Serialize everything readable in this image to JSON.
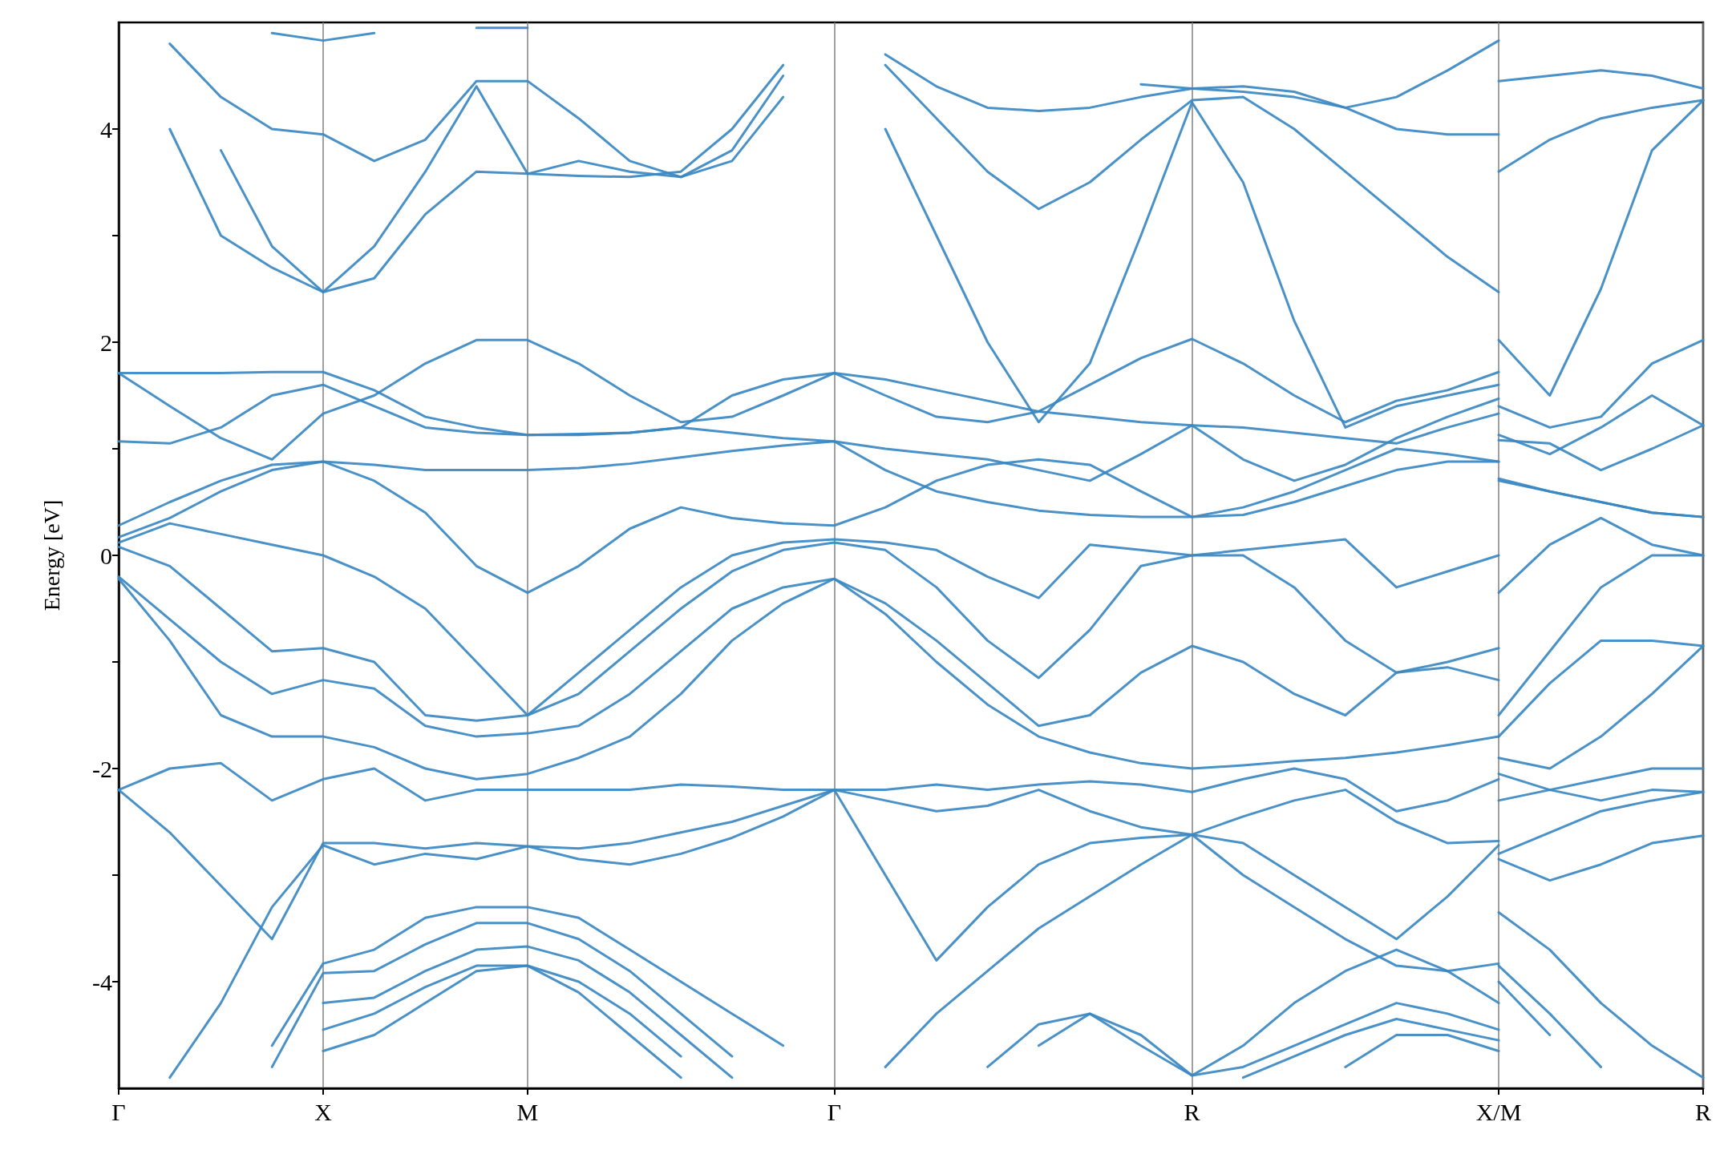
{
  "chart_data": {
    "type": "line",
    "ylabel": "Energy [eV]",
    "ylim": [
      -5,
      5
    ],
    "yticks": [
      -4,
      {
        "value": -3,
        "label": null
      },
      -2,
      {
        "value": -1,
        "label": null
      },
      0,
      {
        "value": 1,
        "label": null
      },
      2,
      {
        "value": 3,
        "label": null
      },
      4
    ],
    "categories": [
      "Γ",
      null,
      null,
      null,
      "X",
      null,
      null,
      null,
      "M",
      null,
      null,
      null,
      null,
      null,
      "Γ",
      null,
      null,
      null,
      null,
      null,
      null,
      "R",
      null,
      null,
      null,
      null,
      null,
      "X/M",
      null,
      null,
      null,
      "R"
    ],
    "grid": "x",
    "line_style": "solid",
    "series": [
      {
        "color": "#3a88c2",
        "values": [
          null,
          null,
          null,
          4.9,
          4.83,
          4.9,
          null,
          4.95,
          4.95,
          null,
          null,
          null,
          null,
          null,
          null,
          null,
          null,
          null,
          null,
          null,
          4.42,
          4.38,
          4.35,
          4.3,
          4.2,
          4.3,
          4.55,
          4.83,
          null,
          null,
          null,
          null
        ]
      },
      {
        "color": "#3a88c2",
        "values": [
          null,
          null,
          null,
          null,
          null,
          null,
          null,
          null,
          null,
          null,
          null,
          null,
          null,
          null,
          null,
          null,
          null,
          null,
          null,
          null,
          null,
          null,
          null,
          null,
          null,
          null,
          null,
          4.45,
          4.5,
          4.55,
          4.5,
          4.38
        ]
      },
      {
        "color": "#3a88c2",
        "values": [
          null,
          4.8,
          4.3,
          4.0,
          3.95,
          3.7,
          3.9,
          4.45,
          4.45,
          4.1,
          3.7,
          3.55,
          3.7,
          4.3,
          null,
          4.7,
          4.4,
          4.2,
          4.17,
          4.2,
          4.3,
          4.38,
          4.4,
          4.35,
          4.2,
          4.0,
          3.95,
          3.95,
          null,
          null,
          null,
          null
        ]
      },
      {
        "color": "#3a88c2",
        "values": [
          null,
          null,
          null,
          null,
          null,
          null,
          null,
          null,
          null,
          null,
          null,
          null,
          null,
          null,
          null,
          null,
          null,
          null,
          null,
          null,
          null,
          null,
          null,
          null,
          null,
          null,
          null,
          3.6,
          3.9,
          4.1,
          4.2,
          4.27
        ]
      },
      {
        "color": "#3a88c2",
        "values": [
          null,
          null,
          3.8,
          2.9,
          2.47,
          2.9,
          3.6,
          4.4,
          3.58,
          3.7,
          3.6,
          3.55,
          3.8,
          4.5,
          null,
          4.6,
          4.1,
          3.6,
          3.25,
          3.5,
          3.9,
          4.27,
          4.3,
          4.0,
          3.6,
          3.2,
          2.8,
          2.47,
          null,
          null,
          null,
          null
        ]
      },
      {
        "color": "#3a88c2",
        "values": [
          null,
          null,
          null,
          null,
          null,
          null,
          null,
          null,
          null,
          null,
          null,
          null,
          null,
          null,
          null,
          null,
          null,
          null,
          null,
          null,
          null,
          null,
          null,
          null,
          null,
          null,
          null,
          2.02,
          1.5,
          2.5,
          3.8,
          4.27
        ]
      },
      {
        "color": "#3a88c2",
        "values": [
          null,
          4.0,
          3.0,
          2.7,
          2.47,
          2.6,
          3.2,
          3.6,
          3.58,
          3.56,
          3.55,
          3.6,
          4.0,
          4.6,
          null,
          4.0,
          3.0,
          2.0,
          1.25,
          1.8,
          3.0,
          4.25,
          3.5,
          2.2,
          1.2,
          1.4,
          1.5,
          1.6,
          null,
          null,
          null,
          null
        ]
      },
      {
        "color": "#3a88c2",
        "values": [
          null,
          null,
          null,
          null,
          null,
          null,
          null,
          null,
          null,
          null,
          null,
          null,
          null,
          null,
          null,
          null,
          null,
          null,
          null,
          null,
          null,
          null,
          null,
          null,
          null,
          null,
          null,
          1.4,
          1.2,
          1.3,
          1.8,
          2.02
        ]
      },
      {
        "color": "#3a88c2",
        "values": [
          1.71,
          1.71,
          1.71,
          1.72,
          1.72,
          1.55,
          1.3,
          1.2,
          1.13,
          1.13,
          1.15,
          1.2,
          1.5,
          1.65,
          1.71,
          1.5,
          1.3,
          1.25,
          1.35,
          1.6,
          1.85,
          2.03,
          1.8,
          1.5,
          1.25,
          1.45,
          1.55,
          1.72,
          null,
          null,
          null,
          null
        ]
      },
      {
        "color": "#3a88c2",
        "values": [
          null,
          null,
          null,
          null,
          null,
          null,
          null,
          null,
          null,
          null,
          null,
          null,
          null,
          null,
          null,
          null,
          null,
          null,
          null,
          null,
          null,
          null,
          null,
          null,
          null,
          null,
          null,
          1.13,
          0.95,
          1.2,
          1.5,
          1.22
        ]
      },
      {
        "color": "#3a88c2",
        "values": [
          1.71,
          1.4,
          1.1,
          0.9,
          1.33,
          1.5,
          1.8,
          2.02,
          2.02,
          1.8,
          1.5,
          1.25,
          1.3,
          1.5,
          1.71,
          1.65,
          1.55,
          1.45,
          1.35,
          1.3,
          1.25,
          1.22,
          1.2,
          1.15,
          1.1,
          1.05,
          1.2,
          1.33,
          null,
          null,
          null,
          null
        ]
      },
      {
        "color": "#3a88c2",
        "values": [
          null,
          null,
          null,
          null,
          null,
          null,
          null,
          null,
          null,
          null,
          null,
          null,
          null,
          null,
          null,
          null,
          null,
          null,
          null,
          null,
          null,
          null,
          null,
          null,
          null,
          null,
          null,
          1.08,
          1.05,
          0.8,
          1.0,
          1.22
        ]
      },
      {
        "color": "#3a88c2",
        "values": [
          1.07,
          1.05,
          1.2,
          1.5,
          1.6,
          1.4,
          1.2,
          1.15,
          1.13,
          1.14,
          1.15,
          1.2,
          1.15,
          1.1,
          1.07,
          1.0,
          0.95,
          0.9,
          0.8,
          0.7,
          0.95,
          1.22,
          0.9,
          0.7,
          0.85,
          1.1,
          1.3,
          1.47,
          null,
          null,
          null,
          null
        ]
      },
      {
        "color": "#3a88c2",
        "values": [
          null,
          null,
          null,
          null,
          null,
          null,
          null,
          null,
          null,
          null,
          null,
          null,
          null,
          null,
          null,
          null,
          null,
          null,
          null,
          null,
          null,
          null,
          null,
          null,
          null,
          null,
          null,
          0.7,
          0.6,
          0.5,
          0.4,
          0.36
        ]
      },
      {
        "color": "#3a88c2",
        "values": [
          0.28,
          0.5,
          0.7,
          0.85,
          0.88,
          0.85,
          0.8,
          0.8,
          0.8,
          0.82,
          0.86,
          0.92,
          0.98,
          1.03,
          1.07,
          0.8,
          0.6,
          0.5,
          0.42,
          0.38,
          0.36,
          0.36,
          0.38,
          0.5,
          0.65,
          0.8,
          0.88,
          0.88,
          null,
          null,
          null,
          null
        ]
      },
      {
        "color": "#3a88c2",
        "values": [
          null,
          null,
          null,
          null,
          null,
          null,
          null,
          null,
          null,
          null,
          null,
          null,
          null,
          null,
          null,
          null,
          null,
          null,
          null,
          null,
          null,
          null,
          null,
          null,
          null,
          null,
          null,
          0.72,
          0.6,
          0.5,
          0.4,
          0.36
        ]
      },
      {
        "color": "#3a88c2",
        "values": [
          0.17,
          0.35,
          0.6,
          0.8,
          0.88,
          0.7,
          0.4,
          -0.1,
          -0.35,
          -0.1,
          0.25,
          0.45,
          0.35,
          0.3,
          0.28,
          0.45,
          0.7,
          0.85,
          0.9,
          0.85,
          0.6,
          0.36,
          0.45,
          0.6,
          0.8,
          1.0,
          0.95,
          0.88,
          null,
          null,
          null,
          null
        ]
      },
      {
        "color": "#3a88c2",
        "values": [
          null,
          null,
          null,
          null,
          null,
          null,
          null,
          null,
          null,
          null,
          null,
          null,
          null,
          null,
          null,
          null,
          null,
          null,
          null,
          null,
          null,
          null,
          null,
          null,
          null,
          null,
          null,
          -0.35,
          0.1,
          0.35,
          0.1,
          0.0
        ]
      },
      {
        "color": "#3a88c2",
        "values": [
          0.12,
          0.3,
          0.2,
          0.1,
          0.0,
          -0.2,
          -0.5,
          -1.0,
          -1.5,
          -1.1,
          -0.7,
          -0.3,
          0.0,
          0.12,
          0.15,
          0.12,
          0.05,
          -0.2,
          -0.4,
          0.1,
          0.05,
          0.0,
          0.05,
          0.1,
          0.15,
          -0.3,
          -0.15,
          0.0,
          null,
          null,
          null,
          null
        ]
      },
      {
        "color": "#3a88c2",
        "values": [
          null,
          null,
          null,
          null,
          null,
          null,
          null,
          null,
          null,
          null,
          null,
          null,
          null,
          null,
          null,
          null,
          null,
          null,
          null,
          null,
          null,
          null,
          null,
          null,
          null,
          null,
          null,
          -1.5,
          -0.9,
          -0.3,
          0.0,
          0.0
        ]
      },
      {
        "color": "#3a88c2",
        "values": [
          0.08,
          -0.1,
          -0.5,
          -0.9,
          -0.87,
          -1.0,
          -1.5,
          -1.55,
          -1.5,
          -1.3,
          -0.9,
          -0.5,
          -0.15,
          0.05,
          0.12,
          0.05,
          -0.3,
          -0.8,
          -1.15,
          -0.7,
          -0.1,
          0.0,
          0.0,
          -0.3,
          -0.8,
          -1.1,
          -1.0,
          -0.87,
          null,
          null,
          null,
          null
        ]
      },
      {
        "color": "#3a88c2",
        "values": [
          null,
          null,
          null,
          null,
          null,
          null,
          null,
          null,
          null,
          null,
          null,
          null,
          null,
          null,
          null,
          null,
          null,
          null,
          null,
          null,
          null,
          null,
          null,
          null,
          null,
          null,
          null,
          -1.7,
          -1.2,
          -0.8,
          -0.8,
          -0.85
        ]
      },
      {
        "color": "#3a88c2",
        "values": [
          -0.2,
          -0.6,
          -1.0,
          -1.3,
          -1.17,
          -1.25,
          -1.6,
          -1.7,
          -1.67,
          -1.6,
          -1.3,
          -0.9,
          -0.5,
          -0.3,
          -0.22,
          -0.45,
          -0.8,
          -1.2,
          -1.6,
          -1.5,
          -1.1,
          -0.85,
          -1.0,
          -1.3,
          -1.5,
          -1.1,
          -1.05,
          -1.17,
          null,
          null,
          null,
          null
        ]
      },
      {
        "color": "#3a88c2",
        "values": [
          null,
          null,
          null,
          null,
          null,
          null,
          null,
          null,
          null,
          null,
          null,
          null,
          null,
          null,
          null,
          null,
          null,
          null,
          null,
          null,
          null,
          null,
          null,
          null,
          null,
          null,
          null,
          -1.9,
          -2.0,
          -1.7,
          -1.3,
          -0.85
        ]
      },
      {
        "color": "#3a88c2",
        "values": [
          -0.22,
          -0.8,
          -1.5,
          -1.7,
          -1.7,
          -1.8,
          -2.0,
          -2.1,
          -2.05,
          -1.9,
          -1.7,
          -1.3,
          -0.8,
          -0.45,
          -0.22,
          -0.55,
          -1.0,
          -1.4,
          -1.7,
          -1.85,
          -1.95,
          -2.0,
          -1.97,
          -1.93,
          -1.9,
          -1.85,
          -1.78,
          -1.7,
          null,
          null,
          null,
          null
        ]
      },
      {
        "color": "#3a88c2",
        "values": [
          null,
          null,
          null,
          null,
          null,
          null,
          null,
          null,
          null,
          null,
          null,
          null,
          null,
          null,
          null,
          null,
          null,
          null,
          null,
          null,
          null,
          null,
          null,
          null,
          null,
          null,
          null,
          -2.05,
          -2.2,
          -2.1,
          -2.0,
          -2.0
        ]
      },
      {
        "color": "#3a88c2",
        "values": [
          -2.2,
          -2.0,
          -1.95,
          -2.3,
          -2.1,
          -2.0,
          -2.3,
          -2.2,
          -2.2,
          -2.2,
          -2.2,
          -2.15,
          -2.17,
          -2.2,
          -2.2,
          -2.2,
          -2.15,
          -2.2,
          -2.15,
          -2.12,
          -2.15,
          -2.22,
          -2.1,
          -2.0,
          -2.1,
          -2.4,
          -2.3,
          -2.1,
          null,
          null,
          null,
          null
        ]
      },
      {
        "color": "#3a88c2",
        "values": [
          null,
          null,
          null,
          null,
          null,
          null,
          null,
          null,
          null,
          null,
          null,
          null,
          null,
          null,
          null,
          null,
          null,
          null,
          null,
          null,
          null,
          null,
          null,
          null,
          null,
          null,
          null,
          -2.3,
          -2.2,
          -2.3,
          -2.2,
          -2.22
        ]
      },
      {
        "color": "#3a88c2",
        "values": [
          -2.2,
          -2.6,
          -3.1,
          -3.6,
          -2.7,
          -2.7,
          -2.75,
          -2.7,
          -2.73,
          -2.75,
          -2.7,
          -2.6,
          -2.5,
          -2.35,
          -2.2,
          -2.3,
          -2.4,
          -2.35,
          -2.2,
          -2.4,
          -2.55,
          -2.62,
          -2.45,
          -2.3,
          -2.2,
          -2.5,
          -2.7,
          -2.68,
          null,
          null,
          null,
          null
        ]
      },
      {
        "color": "#3a88c2",
        "values": [
          null,
          null,
          null,
          null,
          null,
          null,
          null,
          null,
          null,
          null,
          null,
          null,
          null,
          null,
          null,
          null,
          null,
          null,
          null,
          null,
          null,
          null,
          null,
          null,
          null,
          null,
          null,
          -2.8,
          -2.6,
          -2.4,
          -2.3,
          -2.22
        ]
      },
      {
        "color": "#3a88c2",
        "values": [
          null,
          -4.9,
          -4.2,
          -3.3,
          -2.72,
          -2.9,
          -2.8,
          -2.85,
          -2.73,
          -2.85,
          -2.9,
          -2.8,
          -2.65,
          -2.45,
          -2.2,
          -3.0,
          -3.8,
          -3.3,
          -2.9,
          -2.7,
          -2.65,
          -2.62,
          -2.7,
          -3.0,
          -3.3,
          -3.6,
          -3.2,
          -2.72,
          null,
          null,
          null,
          null
        ]
      },
      {
        "color": "#3a88c2",
        "values": [
          null,
          null,
          null,
          null,
          null,
          null,
          null,
          null,
          null,
          null,
          null,
          null,
          null,
          null,
          null,
          null,
          null,
          null,
          null,
          null,
          null,
          null,
          null,
          null,
          null,
          null,
          null,
          -2.85,
          -3.05,
          -2.9,
          -2.7,
          -2.63
        ]
      },
      {
        "color": "#3a88c2",
        "values": [
          null,
          null,
          null,
          -4.6,
          -3.83,
          -3.7,
          -3.4,
          -3.3,
          -3.3,
          -3.4,
          -3.7,
          -4.0,
          -4.3,
          -4.6,
          null,
          -4.8,
          -4.3,
          -3.9,
          -3.5,
          -3.2,
          -2.9,
          -2.62,
          -3.0,
          -3.3,
          -3.6,
          -3.85,
          -3.9,
          -3.83,
          null,
          null,
          null,
          null
        ]
      },
      {
        "color": "#3a88c2",
        "values": [
          null,
          null,
          null,
          null,
          null,
          null,
          null,
          null,
          null,
          null,
          null,
          null,
          null,
          null,
          null,
          null,
          null,
          null,
          null,
          null,
          null,
          null,
          null,
          null,
          null,
          null,
          null,
          -3.35,
          -3.7,
          -4.2,
          -4.6,
          -4.9
        ]
      },
      {
        "color": "#3a88c2",
        "values": [
          null,
          null,
          null,
          -4.8,
          -3.92,
          -3.9,
          -3.65,
          -3.45,
          -3.45,
          -3.6,
          -3.9,
          -4.3,
          -4.7,
          null,
          null,
          null,
          null,
          -4.8,
          -4.4,
          -4.3,
          -4.6,
          -4.88,
          -4.6,
          -4.2,
          -3.9,
          -3.7,
          -3.9,
          -4.2,
          null,
          null,
          null,
          null
        ]
      },
      {
        "color": "#3a88c2",
        "values": [
          null,
          null,
          null,
          null,
          null,
          null,
          null,
          null,
          null,
          null,
          null,
          null,
          null,
          null,
          null,
          null,
          null,
          null,
          null,
          null,
          null,
          null,
          null,
          null,
          null,
          null,
          null,
          -3.85,
          -4.3,
          -4.8,
          null,
          null
        ]
      },
      {
        "color": "#3a88c2",
        "values": [
          null,
          null,
          null,
          null,
          -4.2,
          -4.15,
          -3.9,
          -3.7,
          -3.67,
          -3.8,
          -4.1,
          -4.5,
          -4.9,
          null,
          null,
          null,
          null,
          null,
          -4.6,
          -4.3,
          -4.5,
          -4.88,
          -4.8,
          -4.6,
          -4.4,
          -4.2,
          -4.3,
          -4.45,
          null,
          null,
          null,
          null
        ]
      },
      {
        "color": "#3a88c2",
        "values": [
          null,
          null,
          null,
          null,
          null,
          null,
          null,
          null,
          null,
          null,
          null,
          null,
          null,
          null,
          null,
          null,
          null,
          null,
          null,
          null,
          null,
          null,
          null,
          null,
          null,
          null,
          null,
          -4.0,
          -4.5,
          null,
          null,
          null
        ]
      },
      {
        "color": "#3a88c2",
        "values": [
          null,
          null,
          null,
          null,
          -4.45,
          -4.3,
          -4.05,
          -3.85,
          -3.85,
          -4.0,
          -4.3,
          -4.7,
          null,
          null,
          null,
          null,
          null,
          null,
          null,
          null,
          null,
          null,
          -4.9,
          -4.7,
          -4.5,
          -4.35,
          -4.45,
          -4.55,
          null,
          null,
          null,
          null
        ]
      },
      {
        "color": "#3a88c2",
        "values": [
          null,
          null,
          null,
          null,
          -4.65,
          -4.5,
          -4.2,
          -3.9,
          -3.85,
          -4.1,
          -4.5,
          -4.9,
          null,
          null,
          null,
          null,
          null,
          null,
          null,
          null,
          null,
          null,
          null,
          null,
          -4.8,
          -4.5,
          -4.5,
          -4.65,
          null,
          null,
          null,
          null
        ]
      }
    ]
  }
}
